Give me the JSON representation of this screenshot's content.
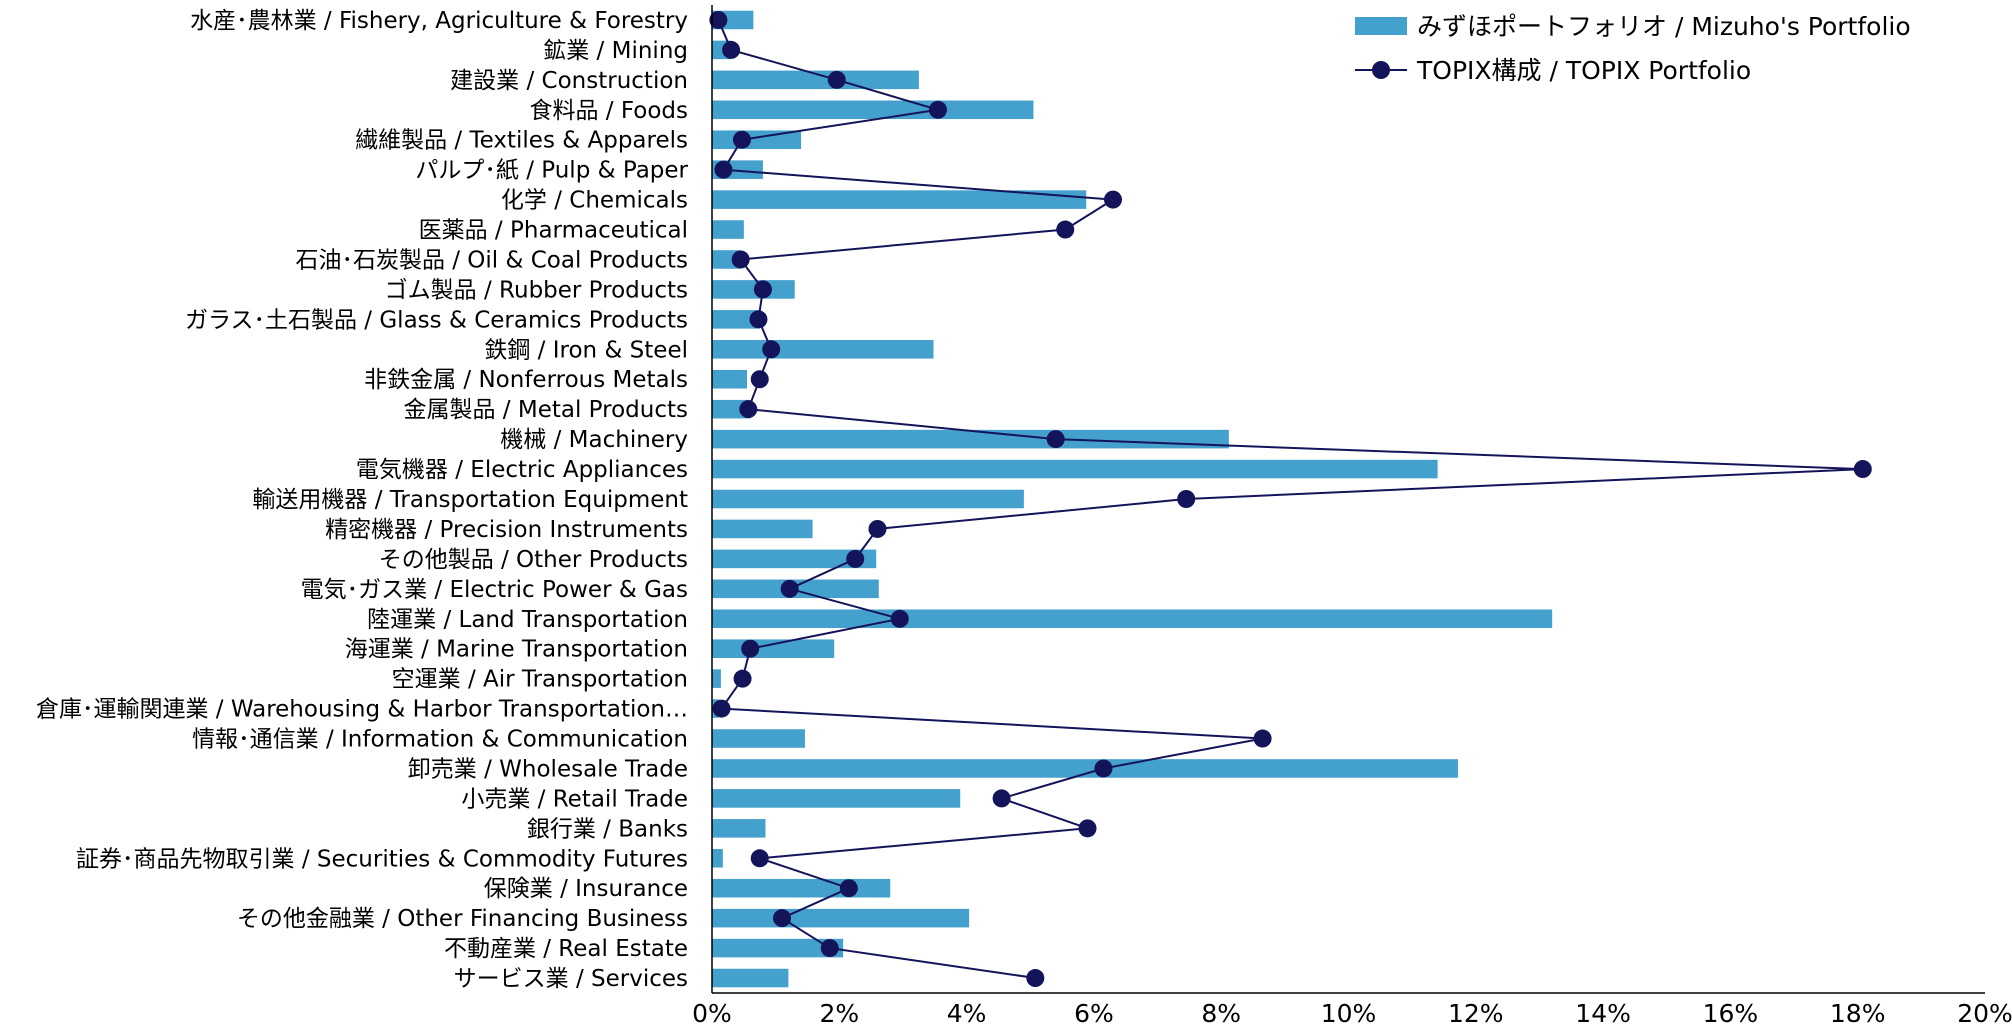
{
  "chart_data": {
    "type": "bar",
    "orientation": "horizontal",
    "categories": [
      "水産･農林業 / Fishery, Agriculture & Forestry",
      "鉱業 / Mining",
      "建設業 / Construction",
      "食料品 / Foods",
      "繊維製品 / Textiles & Apparels",
      "パルプ･紙 / Pulp & Paper",
      "化学 / Chemicals",
      "医薬品 / Pharmaceutical",
      "石油･石炭製品 / Oil & Coal Products",
      "ゴム製品 / Rubber Products",
      "ガラス･土石製品 / Glass & Ceramics Products",
      "鉄鋼 / Iron & Steel",
      "非鉄金属 / Nonferrous Metals",
      "金属製品 / Metal Products",
      "機械 / Machinery",
      "電気機器 / Electric Appliances",
      "輸送用機器 / Transportation Equipment",
      "精密機器 / Precision Instruments",
      "その他製品 / Other Products",
      "電気･ガス業 / Electric Power & Gas",
      "陸運業 / Land Transportation",
      "海運業 / Marine Transportation",
      "空運業 / Air Transportation",
      "倉庫･運輸関連業 / Warehousing & Harbor Transportation…",
      "情報･通信業 / Information & Communication",
      "卸売業 / Wholesale Trade",
      "小売業 / Retail Trade",
      "銀行業 / Banks",
      "証券･商品先物取引業 / Securities & Commodity Futures",
      "保険業 / Insurance",
      "その他金融業 / Other Financing Business",
      "不動産業 / Real Estate",
      "サービス業 / Services"
    ],
    "series": [
      {
        "name": "みずほポートフォリオ / Mizuho's Portfolio",
        "kind": "bar",
        "color": "#44A0CC",
        "values": [
          0.65,
          0.3,
          3.25,
          5.05,
          1.4,
          0.8,
          5.88,
          0.5,
          0.45,
          1.3,
          0.75,
          3.48,
          0.55,
          0.6,
          8.12,
          11.4,
          4.9,
          1.58,
          2.58,
          2.62,
          13.2,
          1.92,
          0.14,
          0.1,
          1.46,
          11.72,
          3.9,
          0.84,
          0.17,
          2.8,
          4.04,
          2.06,
          1.2
        ]
      },
      {
        "name": "TOPIX構成 / TOPIX Portfolio",
        "kind": "line",
        "color": "#14145A",
        "values": [
          0.1,
          0.3,
          1.96,
          3.55,
          0.47,
          0.18,
          6.3,
          5.55,
          0.45,
          0.8,
          0.73,
          0.93,
          0.75,
          0.57,
          5.4,
          18.08,
          7.45,
          2.6,
          2.25,
          1.22,
          2.95,
          0.6,
          0.48,
          0.15,
          8.65,
          6.15,
          4.55,
          5.9,
          0.75,
          2.15,
          1.1,
          1.85,
          5.08
        ]
      }
    ],
    "xlim": [
      0,
      20
    ],
    "xticks": [
      "0%",
      "2%",
      "4%",
      "6%",
      "8%",
      "10%",
      "12%",
      "14%",
      "16%",
      "18%",
      "20%"
    ],
    "title": "",
    "xlabel": "",
    "ylabel": "",
    "grid": false,
    "legend_position": "top-right"
  }
}
